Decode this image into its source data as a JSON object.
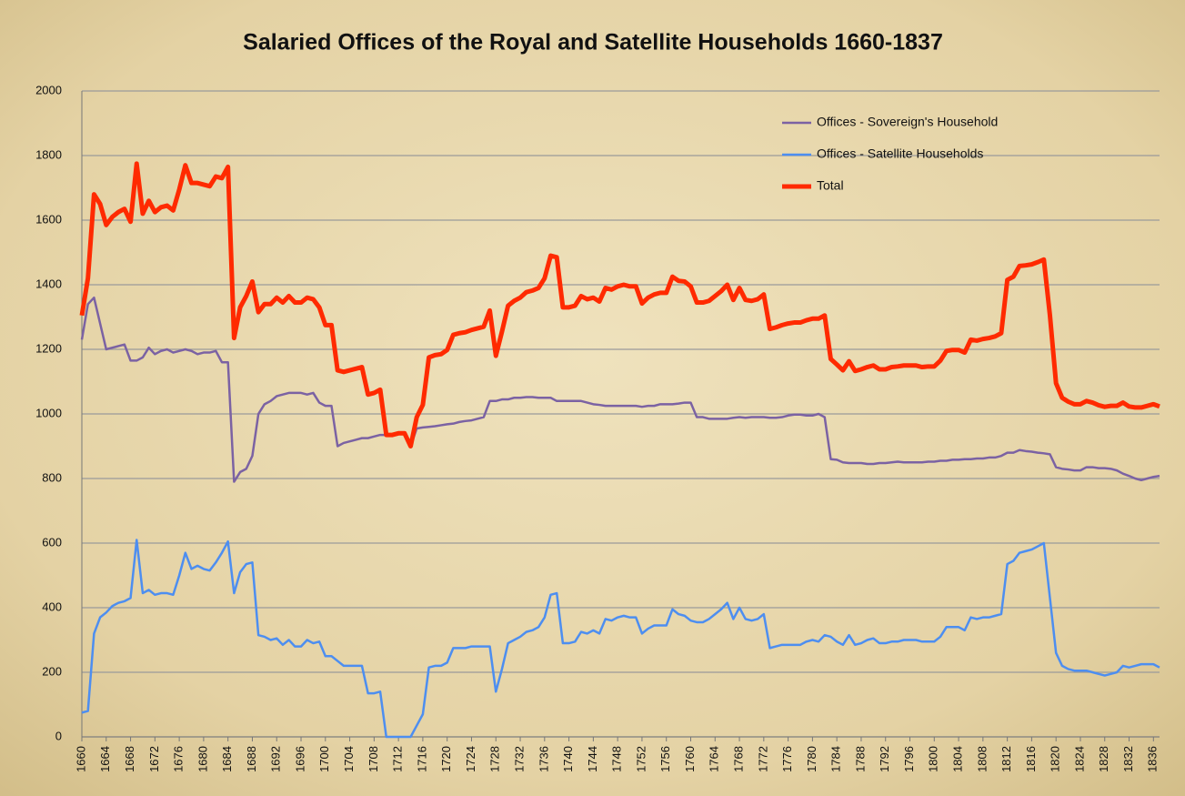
{
  "chart_data": {
    "type": "line",
    "title": "Salaried Offices of the Royal and Satellite Households 1660-1837",
    "x": [
      1660,
      1661,
      1662,
      1663,
      1664,
      1665,
      1666,
      1667,
      1668,
      1669,
      1670,
      1671,
      1672,
      1673,
      1674,
      1675,
      1676,
      1677,
      1678,
      1679,
      1680,
      1681,
      1682,
      1683,
      1684,
      1685,
      1686,
      1687,
      1688,
      1689,
      1690,
      1691,
      1692,
      1693,
      1694,
      1695,
      1696,
      1697,
      1698,
      1699,
      1700,
      1701,
      1702,
      1703,
      1704,
      1705,
      1706,
      1707,
      1708,
      1709,
      1710,
      1711,
      1712,
      1713,
      1714,
      1715,
      1716,
      1717,
      1718,
      1719,
      1720,
      1721,
      1722,
      1723,
      1724,
      1725,
      1726,
      1727,
      1728,
      1729,
      1730,
      1731,
      1732,
      1733,
      1734,
      1735,
      1736,
      1737,
      1738,
      1739,
      1740,
      1741,
      1742,
      1743,
      1744,
      1745,
      1746,
      1747,
      1748,
      1749,
      1750,
      1751,
      1752,
      1753,
      1754,
      1755,
      1756,
      1757,
      1758,
      1759,
      1760,
      1761,
      1762,
      1763,
      1764,
      1765,
      1766,
      1767,
      1768,
      1769,
      1770,
      1771,
      1772,
      1773,
      1774,
      1775,
      1776,
      1777,
      1778,
      1779,
      1780,
      1781,
      1782,
      1783,
      1784,
      1785,
      1786,
      1787,
      1788,
      1789,
      1790,
      1791,
      1792,
      1793,
      1794,
      1795,
      1796,
      1797,
      1798,
      1799,
      1800,
      1801,
      1802,
      1803,
      1804,
      1805,
      1806,
      1807,
      1808,
      1809,
      1810,
      1811,
      1812,
      1813,
      1814,
      1815,
      1816,
      1817,
      1818,
      1819,
      1820,
      1821,
      1822,
      1823,
      1824,
      1825,
      1826,
      1827,
      1828,
      1829,
      1830,
      1831,
      1832,
      1833,
      1834,
      1835,
      1836,
      1837
    ],
    "xlim": [
      1660,
      1837
    ],
    "xticks": [
      1660,
      1664,
      1668,
      1672,
      1676,
      1680,
      1684,
      1688,
      1692,
      1696,
      1700,
      1704,
      1708,
      1712,
      1716,
      1720,
      1724,
      1728,
      1732,
      1736,
      1740,
      1744,
      1748,
      1752,
      1756,
      1760,
      1764,
      1768,
      1772,
      1776,
      1780,
      1784,
      1788,
      1792,
      1796,
      1800,
      1804,
      1808,
      1812,
      1816,
      1820,
      1824,
      1828,
      1832,
      1836
    ],
    "ylim": [
      0,
      2000
    ],
    "yticks": [
      0,
      200,
      400,
      600,
      800,
      1000,
      1200,
      1400,
      1600,
      1800,
      2000
    ],
    "grid": true,
    "legend": "top-right",
    "series": [
      {
        "name": "Offices - Sovereign's Household",
        "color": "#7b62a3",
        "values": [
          1230,
          1340,
          1360,
          1280,
          1200,
          1205,
          1210,
          1215,
          1165,
          1165,
          1175,
          1205,
          1185,
          1195,
          1200,
          1190,
          1195,
          1200,
          1195,
          1185,
          1190,
          1190,
          1195,
          1160,
          1160,
          790,
          820,
          830,
          870,
          1000,
          1030,
          1040,
          1055,
          1060,
          1065,
          1065,
          1065,
          1060,
          1065,
          1035,
          1025,
          1025,
          900,
          910,
          915,
          920,
          925,
          925,
          930,
          935,
          935,
          935,
          940,
          940,
          900,
          955,
          958,
          960,
          962,
          965,
          968,
          970,
          975,
          978,
          980,
          985,
          990,
          1040,
          1040,
          1045,
          1045,
          1050,
          1050,
          1052,
          1052,
          1050,
          1050,
          1050,
          1040,
          1040,
          1040,
          1040,
          1040,
          1035,
          1030,
          1028,
          1025,
          1025,
          1025,
          1025,
          1025,
          1025,
          1022,
          1025,
          1025,
          1030,
          1030,
          1030,
          1032,
          1035,
          1035,
          990,
          990,
          985,
          985,
          985,
          985,
          988,
          990,
          988,
          990,
          990,
          990,
          988,
          988,
          990,
          995,
          998,
          998,
          995,
          995,
          1000,
          990,
          860,
          858,
          850,
          848,
          848,
          848,
          845,
          845,
          848,
          848,
          850,
          852,
          850,
          850,
          850,
          850,
          852,
          852,
          855,
          855,
          858,
          858,
          860,
          860,
          862,
          862,
          865,
          865,
          870,
          880,
          880,
          888,
          885,
          883,
          880,
          878,
          875,
          835,
          830,
          828,
          825,
          825,
          835,
          835,
          832,
          832,
          830,
          825,
          815,
          808,
          800,
          795,
          800,
          805,
          808
        ]
      },
      {
        "name": "Offices - Satellite Households",
        "color": "#4d8ef0",
        "values": [
          75,
          80,
          320,
          370,
          385,
          405,
          415,
          420,
          430,
          610,
          445,
          455,
          440,
          445,
          445,
          440,
          500,
          570,
          520,
          530,
          520,
          515,
          540,
          570,
          605,
          445,
          510,
          535,
          540,
          315,
          310,
          300,
          305,
          285,
          300,
          280,
          280,
          300,
          290,
          295,
          250,
          250,
          235,
          220,
          220,
          220,
          220,
          135,
          135,
          140,
          0,
          0,
          0,
          0,
          0,
          35,
          70,
          215,
          220,
          220,
          230,
          275,
          275,
          275,
          280,
          280,
          280,
          280,
          140,
          210,
          290,
          300,
          310,
          325,
          330,
          340,
          370,
          440,
          445,
          290,
          290,
          295,
          325,
          320,
          330,
          320,
          365,
          360,
          370,
          375,
          370,
          370,
          320,
          335,
          345,
          345,
          345,
          395,
          380,
          375,
          360,
          355,
          355,
          365,
          380,
          395,
          415,
          365,
          400,
          365,
          360,
          365,
          380,
          275,
          280,
          285,
          285,
          285,
          285,
          295,
          300,
          295,
          315,
          310,
          295,
          285,
          315,
          285,
          290,
          300,
          305,
          290,
          290,
          295,
          295,
          300,
          300,
          300,
          295,
          295,
          295,
          310,
          340,
          340,
          340,
          330,
          370,
          365,
          370,
          370,
          375,
          380,
          535,
          545,
          570,
          575,
          580,
          590,
          600,
          430,
          260,
          220,
          210,
          205,
          205,
          205,
          200,
          195,
          190,
          195,
          200,
          220,
          215,
          220,
          225,
          225,
          225,
          215
        ]
      },
      {
        "name": "Total",
        "color": "#ff2a00",
        "values": [
          1305,
          1420,
          1680,
          1650,
          1585,
          1610,
          1625,
          1635,
          1595,
          1775,
          1620,
          1660,
          1625,
          1640,
          1645,
          1630,
          1695,
          1770,
          1715,
          1715,
          1710,
          1705,
          1735,
          1730,
          1765,
          1235,
          1330,
          1365,
          1410,
          1315,
          1340,
          1340,
          1360,
          1345,
          1365,
          1345,
          1345,
          1360,
          1355,
          1330,
          1275,
          1275,
          1135,
          1130,
          1135,
          1140,
          1145,
          1060,
          1065,
          1075,
          935,
          935,
          940,
          940,
          900,
          990,
          1028,
          1175,
          1182,
          1185,
          1198,
          1245,
          1250,
          1253,
          1260,
          1265,
          1270,
          1320,
          1180,
          1255,
          1335,
          1350,
          1360,
          1377,
          1382,
          1390,
          1420,
          1490,
          1485,
          1330,
          1330,
          1335,
          1365,
          1355,
          1360,
          1348,
          1390,
          1385,
          1395,
          1400,
          1395,
          1395,
          1342,
          1360,
          1370,
          1375,
          1375,
          1425,
          1412,
          1410,
          1395,
          1345,
          1345,
          1350,
          1365,
          1380,
          1400,
          1353,
          1390,
          1353,
          1350,
          1355,
          1370,
          1263,
          1268,
          1275,
          1280,
          1283,
          1283,
          1290,
          1295,
          1295,
          1305,
          1170,
          1153,
          1135,
          1163,
          1133,
          1138,
          1145,
          1150,
          1138,
          1138,
          1145,
          1147,
          1150,
          1150,
          1150,
          1145,
          1147,
          1147,
          1165,
          1195,
          1198,
          1198,
          1190,
          1230,
          1227,
          1232,
          1235,
          1240,
          1250,
          1415,
          1425,
          1458,
          1460,
          1463,
          1470,
          1478,
          1305,
          1095,
          1050,
          1038,
          1030,
          1030,
          1040,
          1035,
          1027,
          1022,
          1025,
          1025,
          1035,
          1023,
          1020,
          1020,
          1025,
          1030,
          1023
        ],
        "width": 5
      }
    ]
  }
}
